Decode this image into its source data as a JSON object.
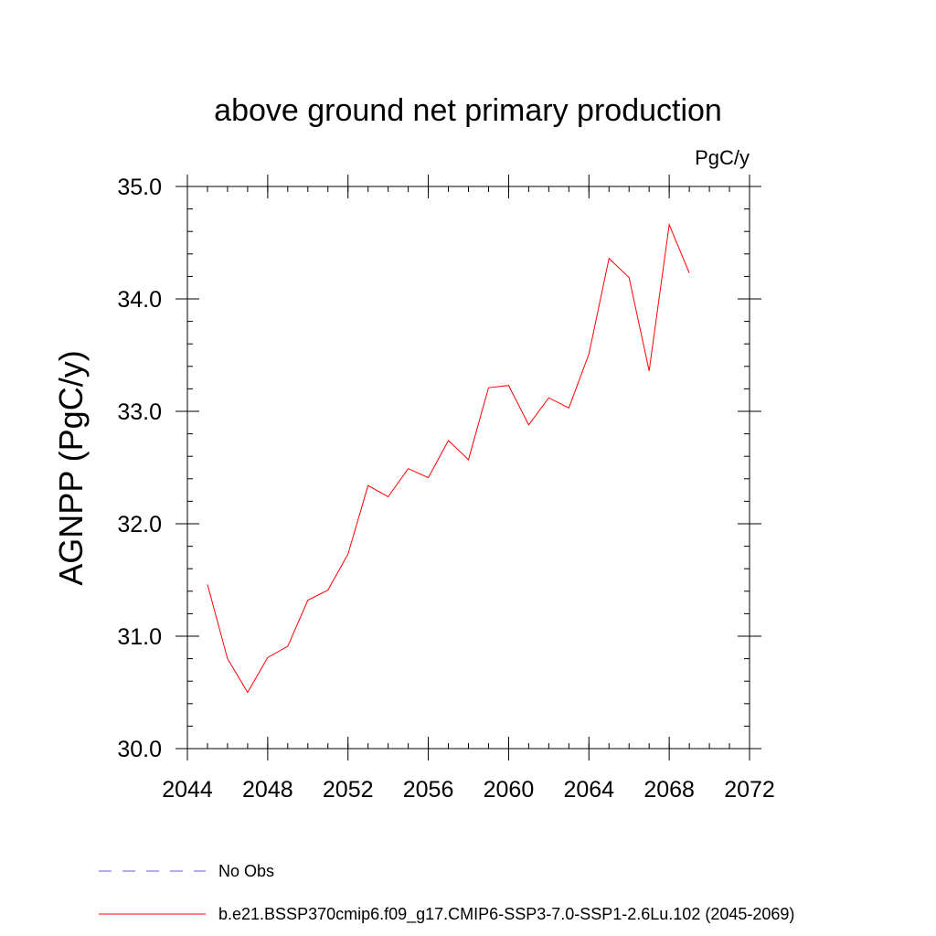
{
  "chart_data": {
    "type": "line",
    "title": "above ground net primary production",
    "units": "PgC/y",
    "ylabel": "AGNPP  (PgC/y)",
    "xlabel": "",
    "xlim": [
      2044,
      2072
    ],
    "ylim": [
      30.0,
      35.0
    ],
    "x_ticks": [
      "2044",
      "2048",
      "2052",
      "2056",
      "2060",
      "2064",
      "2068",
      "2072"
    ],
    "y_ticks": [
      "30.0",
      "31.0",
      "32.0",
      "33.0",
      "34.0",
      "35.0"
    ],
    "x_minor_step": 1,
    "y_minor_step": 0.2,
    "grid": false,
    "legend_position": "bottom",
    "series": [
      {
        "name": "b.e21.BSSP370cmip6.f09_g17.CMIP6-SSP3-7.0-SSP1-2.6Lu.102 (2045-2069)",
        "color": "#ff0000",
        "x": [
          2045,
          2046,
          2047,
          2048,
          2049,
          2050,
          2051,
          2052,
          2053,
          2054,
          2055,
          2056,
          2057,
          2058,
          2059,
          2060,
          2061,
          2062,
          2063,
          2064,
          2065,
          2066,
          2067,
          2068,
          2069
        ],
        "values": [
          31.46,
          30.8,
          30.5,
          30.81,
          30.91,
          31.32,
          31.41,
          31.73,
          32.34,
          32.24,
          32.49,
          32.41,
          32.74,
          32.57,
          33.21,
          33.23,
          32.88,
          33.12,
          33.03,
          33.51,
          34.36,
          34.19,
          33.36,
          34.66,
          34.23
        ]
      }
    ],
    "legend": [
      {
        "label": "No Obs",
        "color": "#6a5acd",
        "style": "dashed"
      },
      {
        "label": "b.e21.BSSP370cmip6.f09_g17.CMIP6-SSP3-7.0-SSP1-2.6Lu.102 (2045-2069)",
        "color": "#ff0000",
        "style": "solid"
      }
    ]
  }
}
